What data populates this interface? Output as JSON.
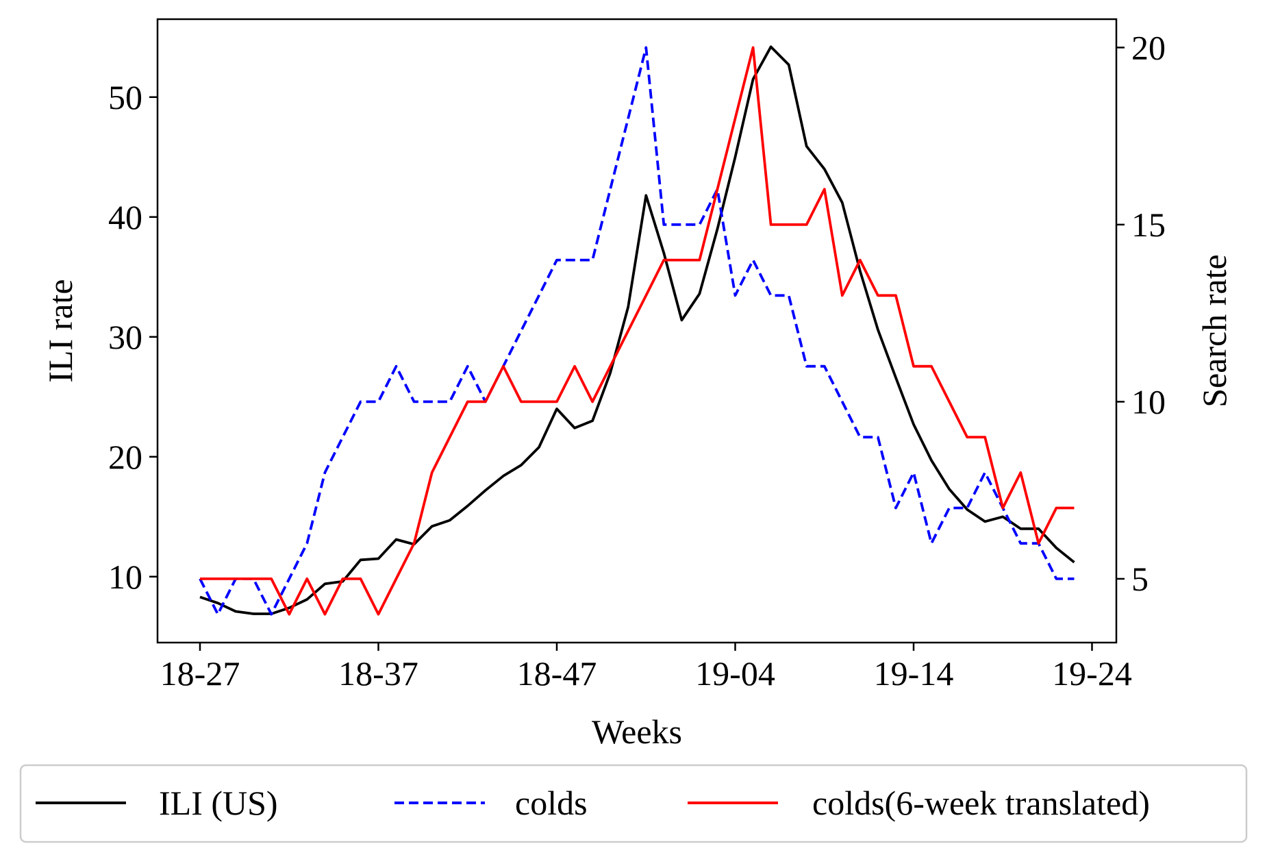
{
  "chart_data": {
    "type": "line",
    "xlabel": "Weeks",
    "ylabel": "ILI rate",
    "y2label": "Search rate",
    "x_tick_labels": [
      "18-27",
      "18-37",
      "18-47",
      "19-04",
      "19-14",
      "19-24"
    ],
    "x_tick_index": [
      0,
      10,
      20,
      30,
      40,
      50
    ],
    "ylim": [
      4.5,
      56.5
    ],
    "yticks": [
      10,
      20,
      30,
      40,
      50
    ],
    "y2lim": [
      3.2,
      20.8
    ],
    "y2ticks": [
      5,
      10,
      15,
      20
    ],
    "legend_position": "bottom",
    "series": [
      {
        "name": "ILI (US)",
        "axis": "left",
        "color": "#000000",
        "dash": "solid",
        "values": [
          8.3,
          7.8,
          7.1,
          6.9,
          6.9,
          7.4,
          8.1,
          9.4,
          9.6,
          11.4,
          11.5,
          13.1,
          12.7,
          14.2,
          14.7,
          15.9,
          17.2,
          18.4,
          19.3,
          20.8,
          24.0,
          22.4,
          23.0,
          27.0,
          32.5,
          41.8,
          37.0,
          31.4,
          33.6,
          39.0,
          45.0,
          51.5,
          54.2,
          52.7,
          45.9,
          44.0,
          41.2,
          35.5,
          30.6,
          26.6,
          22.7,
          19.7,
          17.3,
          15.6,
          14.6,
          15.0,
          14.0,
          14.0,
          12.4,
          11.2
        ]
      },
      {
        "name": "colds",
        "axis": "right",
        "color": "#0000ff",
        "dash": "dashed",
        "values": [
          5,
          4,
          5,
          5,
          4,
          5,
          6,
          8,
          9,
          10,
          10,
          11,
          10,
          10,
          10,
          11,
          10,
          11,
          12,
          13,
          14,
          14,
          14,
          16,
          18,
          20,
          15,
          15,
          15,
          16,
          13,
          14,
          13,
          13,
          11,
          11,
          10,
          9,
          9,
          7,
          8,
          6,
          7,
          7,
          8,
          7,
          6,
          6,
          5,
          5
        ]
      },
      {
        "name": "colds(6-week translated)",
        "axis": "right",
        "color": "#ff0000",
        "dash": "solid",
        "values": [
          5,
          5,
          5,
          5,
          5,
          4,
          5,
          4,
          5,
          5,
          4,
          5,
          6,
          8,
          9,
          10,
          10,
          11,
          10,
          10,
          10,
          11,
          10,
          11,
          12,
          13,
          14,
          14,
          14,
          16,
          18,
          20,
          15,
          15,
          15,
          16,
          13,
          14,
          13,
          13,
          11,
          11,
          10,
          9,
          9,
          7,
          8,
          6,
          7,
          7
        ]
      }
    ]
  }
}
